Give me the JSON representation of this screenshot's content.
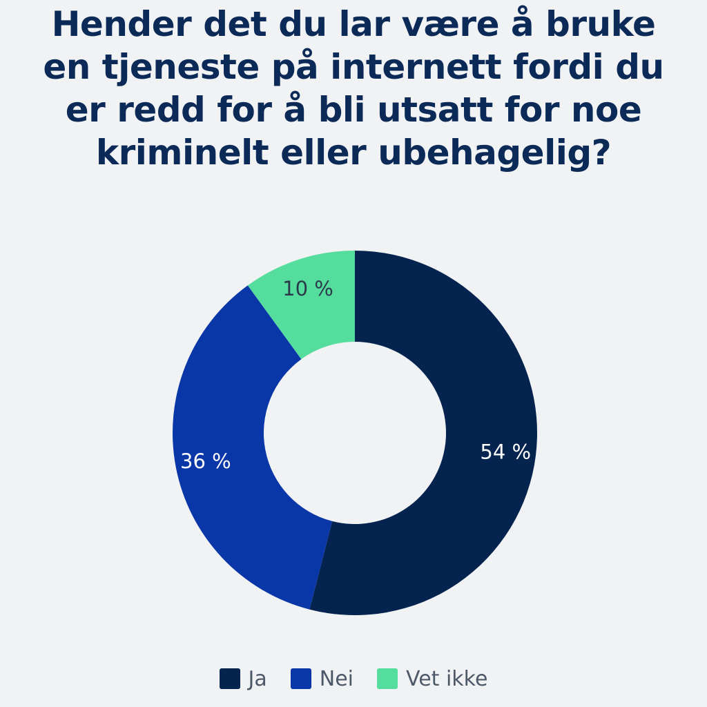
{
  "chart_data": {
    "type": "pie",
    "title": "Hender det du lar være å bruke en tjeneste på internett fordi du er redd for å bli utsatt for noe kriminelt eller ubehagelig?",
    "categories": [
      "Ja",
      "Nei",
      "Vet ikke"
    ],
    "values": [
      54,
      36,
      10
    ],
    "value_labels": [
      "54 %",
      "36 %",
      "10 %"
    ],
    "colors": [
      "#04244f",
      "#0a37a8",
      "#55dd9d"
    ],
    "label_colors": [
      "#ffffff",
      "#ffffff",
      "#2b3a4a"
    ],
    "donut": true,
    "legend_position": "bottom"
  }
}
